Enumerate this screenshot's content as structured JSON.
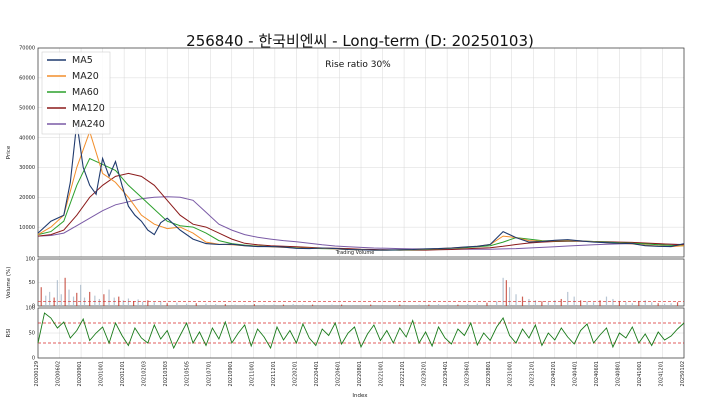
{
  "figure": {
    "title": "256840 - 한국비엔씨 - Long-term (D: 20250103)",
    "annotation": "Rise ratio 30%",
    "watermark": "Trading Volume"
  },
  "chart_data": [
    {
      "type": "line",
      "panel": "price",
      "ylabel": "Price",
      "ylim": [
        0,
        70000
      ],
      "yticks": [
        10000,
        20000,
        30000,
        40000,
        50000,
        60000,
        70000
      ],
      "grid": true,
      "legend_position": "top-left",
      "x_range": [
        0,
        1000
      ],
      "series": [
        {
          "name": "MA5",
          "color": "#1f3a6e",
          "x": [
            0,
            20,
            40,
            50,
            60,
            70,
            80,
            90,
            100,
            110,
            120,
            130,
            140,
            150,
            160,
            170,
            180,
            190,
            200,
            220,
            240,
            260,
            280,
            300,
            320,
            340,
            360,
            380,
            400,
            420,
            440,
            460,
            480,
            500,
            520,
            540,
            560,
            580,
            600,
            620,
            640,
            660,
            680,
            700,
            720,
            740,
            760,
            780,
            800,
            820,
            840,
            860,
            880,
            900,
            920,
            940,
            960,
            980,
            1000
          ],
          "y": [
            8000,
            12000,
            14000,
            25000,
            45000,
            30000,
            24000,
            21000,
            33000,
            27000,
            32000,
            24000,
            17000,
            14000,
            12000,
            9000,
            7500,
            11500,
            13000,
            9000,
            6000,
            4500,
            4200,
            4300,
            3800,
            3500,
            3500,
            3300,
            2900,
            2800,
            3000,
            2800,
            2500,
            2400,
            2300,
            2300,
            2400,
            2500,
            2700,
            2800,
            3000,
            3300,
            3600,
            4200,
            8500,
            6500,
            5000,
            5200,
            5600,
            5800,
            5400,
            5000,
            4800,
            4600,
            4500,
            3800,
            3600,
            3500,
            4500
          ]
        },
        {
          "name": "MA20",
          "color": "#f28e2b",
          "x": [
            0,
            20,
            40,
            60,
            80,
            100,
            120,
            140,
            160,
            180,
            200,
            220,
            240,
            260,
            280,
            300,
            320,
            340,
            360,
            380,
            400,
            420,
            440,
            460,
            480,
            500,
            520,
            540,
            560,
            580,
            600,
            620,
            640,
            660,
            680,
            700,
            720,
            740,
            760,
            780,
            800,
            820,
            840,
            860,
            880,
            900,
            920,
            940,
            960,
            980,
            1000
          ],
          "y": [
            7500,
            10000,
            14000,
            30000,
            42000,
            28000,
            25000,
            20000,
            14000,
            11000,
            9500,
            10000,
            8000,
            5000,
            4300,
            4100,
            3800,
            3600,
            3400,
            3200,
            3000,
            2900,
            2900,
            2700,
            2500,
            2400,
            2300,
            2300,
            2400,
            2500,
            2600,
            2800,
            3000,
            3300,
            3600,
            4200,
            7000,
            6500,
            5500,
            5300,
            5500,
            5600,
            5400,
            5100,
            4800,
            4600,
            4400,
            4000,
            3700,
            3500,
            3800
          ]
        },
        {
          "name": "MA60",
          "color": "#2ca02c",
          "x": [
            0,
            20,
            40,
            60,
            80,
            100,
            120,
            140,
            160,
            180,
            200,
            220,
            240,
            260,
            280,
            300,
            320,
            340,
            360,
            380,
            400,
            420,
            440,
            460,
            480,
            500,
            520,
            540,
            560,
            580,
            600,
            620,
            640,
            660,
            680,
            700,
            720,
            740,
            760,
            780,
            800,
            820,
            840,
            860,
            880,
            900,
            920,
            940,
            960,
            980,
            1000
          ],
          "y": [
            7500,
            8500,
            12000,
            24000,
            33000,
            31000,
            29000,
            24000,
            20000,
            16000,
            12000,
            10500,
            10000,
            8000,
            5500,
            4500,
            4000,
            3700,
            3500,
            3300,
            3100,
            2900,
            2800,
            2700,
            2500,
            2400,
            2300,
            2300,
            2300,
            2400,
            2500,
            2700,
            2900,
            3100,
            3400,
            3800,
            5000,
            6500,
            6000,
            5500,
            5400,
            5500,
            5400,
            5200,
            5000,
            4800,
            4600,
            4400,
            4100,
            3900,
            3800
          ]
        },
        {
          "name": "MA120",
          "color": "#8b1a1a",
          "x": [
            0,
            20,
            40,
            60,
            80,
            100,
            120,
            140,
            160,
            180,
            200,
            220,
            240,
            260,
            280,
            300,
            320,
            340,
            360,
            380,
            400,
            420,
            440,
            460,
            480,
            500,
            520,
            540,
            560,
            580,
            600,
            620,
            640,
            660,
            680,
            700,
            720,
            740,
            760,
            780,
            800,
            820,
            840,
            860,
            880,
            900,
            920,
            940,
            960,
            980,
            1000
          ],
          "y": [
            7000,
            7500,
            9000,
            14000,
            20000,
            24000,
            27000,
            28000,
            27000,
            24000,
            19000,
            14000,
            11000,
            10000,
            8000,
            6000,
            4600,
            4100,
            3800,
            3600,
            3400,
            3200,
            3000,
            2900,
            2800,
            2600,
            2500,
            2400,
            2300,
            2300,
            2300,
            2400,
            2500,
            2700,
            2900,
            3100,
            3600,
            4200,
            4700,
            5000,
            5200,
            5300,
            5300,
            5200,
            5100,
            5000,
            4900,
            4700,
            4500,
            4300,
            4100
          ]
        },
        {
          "name": "MA240",
          "color": "#7a5aa6",
          "x": [
            0,
            20,
            40,
            60,
            80,
            100,
            120,
            140,
            160,
            180,
            200,
            220,
            240,
            260,
            280,
            300,
            320,
            340,
            360,
            380,
            400,
            420,
            440,
            460,
            480,
            500,
            520,
            540,
            560,
            580,
            600,
            620,
            640,
            660,
            680,
            700,
            720,
            740,
            760,
            780,
            800,
            820,
            840,
            860,
            880,
            900,
            920,
            940,
            960,
            980,
            1000
          ],
          "y": [
            7000,
            7200,
            8000,
            10500,
            13000,
            15500,
            17500,
            18500,
            19500,
            20000,
            20200,
            20000,
            19000,
            15000,
            11000,
            9000,
            7500,
            6600,
            6000,
            5500,
            5100,
            4600,
            4100,
            3700,
            3400,
            3200,
            3000,
            2900,
            2800,
            2700,
            2700,
            2700,
            2600,
            2600,
            2600,
            2600,
            2700,
            2800,
            3000,
            3200,
            3400,
            3700,
            3900,
            4100,
            4300,
            4400,
            4500,
            4500,
            4400,
            4300,
            4200
          ]
        }
      ]
    },
    {
      "type": "bar",
      "panel": "volume",
      "ylabel": "Volume (%)",
      "ylim": [
        0,
        100
      ],
      "yticks": [
        0,
        50,
        100
      ],
      "reference_line": 10,
      "x": [
        5,
        12,
        18,
        25,
        30,
        36,
        42,
        48,
        55,
        60,
        66,
        72,
        80,
        88,
        95,
        102,
        110,
        118,
        125,
        132,
        140,
        148,
        155,
        162,
        170,
        180,
        190,
        200,
        215,
        230,
        245,
        260,
        275,
        290,
        305,
        320,
        335,
        350,
        365,
        380,
        395,
        410,
        425,
        440,
        455,
        470,
        485,
        500,
        515,
        530,
        545,
        560,
        575,
        590,
        605,
        620,
        635,
        650,
        665,
        680,
        695,
        710,
        720,
        725,
        730,
        740,
        750,
        760,
        770,
        780,
        790,
        800,
        810,
        820,
        830,
        840,
        850,
        860,
        870,
        880,
        890,
        900,
        910,
        920,
        930,
        940,
        950,
        960,
        970,
        980,
        990
      ],
      "values": [
        40,
        22,
        30,
        18,
        55,
        25,
        60,
        35,
        20,
        28,
        45,
        18,
        30,
        22,
        15,
        25,
        35,
        18,
        20,
        12,
        16,
        10,
        14,
        9,
        12,
        8,
        10,
        6,
        7,
        5,
        6,
        5,
        4,
        4,
        3,
        3,
        4,
        3,
        3,
        3,
        4,
        3,
        3,
        2,
        3,
        3,
        2,
        2,
        3,
        2,
        2,
        3,
        2,
        3,
        3,
        4,
        3,
        3,
        4,
        5,
        7,
        10,
        60,
        55,
        40,
        25,
        20,
        15,
        12,
        10,
        8,
        12,
        15,
        30,
        20,
        12,
        10,
        8,
        12,
        20,
        15,
        10,
        8,
        6,
        10,
        12,
        8,
        6,
        5,
        6,
        8
      ]
    },
    {
      "type": "line",
      "panel": "rsi",
      "ylabel": "RSI",
      "ylim": [
        0,
        100
      ],
      "yticks": [
        0,
        50,
        100
      ],
      "reference_lines": [
        70,
        30
      ],
      "x_label": "Index",
      "series": [
        {
          "name": "",
          "color": "#1a7a1a",
          "x": [
            0,
            10,
            20,
            30,
            40,
            50,
            60,
            70,
            80,
            90,
            100,
            110,
            120,
            130,
            140,
            150,
            160,
            170,
            180,
            190,
            200,
            210,
            220,
            230,
            240,
            250,
            260,
            270,
            280,
            290,
            300,
            310,
            320,
            330,
            340,
            350,
            360,
            370,
            380,
            390,
            400,
            410,
            420,
            430,
            440,
            450,
            460,
            470,
            480,
            490,
            500,
            510,
            520,
            530,
            540,
            550,
            560,
            570,
            580,
            590,
            600,
            610,
            620,
            630,
            640,
            650,
            660,
            670,
            680,
            690,
            700,
            710,
            720,
            730,
            740,
            750,
            760,
            770,
            780,
            790,
            800,
            810,
            820,
            830,
            840,
            850,
            860,
            870,
            880,
            890,
            900,
            910,
            920,
            930,
            940,
            950,
            960,
            970,
            980,
            990,
            1000
          ],
          "y": [
            30,
            90,
            80,
            60,
            72,
            40,
            55,
            78,
            35,
            50,
            62,
            30,
            70,
            45,
            25,
            60,
            40,
            30,
            66,
            38,
            55,
            20,
            45,
            70,
            30,
            52,
            25,
            60,
            38,
            72,
            30,
            50,
            66,
            24,
            58,
            42,
            20,
            62,
            36,
            55,
            30,
            68,
            40,
            25,
            58,
            45,
            70,
            28,
            50,
            62,
            22,
            48,
            66,
            35,
            55,
            30,
            60,
            42,
            75,
            30,
            52,
            24,
            62,
            40,
            28,
            58,
            45,
            70,
            26,
            50,
            35,
            62,
            80,
            45,
            30,
            58,
            40,
            66,
            25,
            50,
            36,
            60,
            42,
            28,
            55,
            68,
            30,
            46,
            60,
            22,
            50,
            40,
            62,
            30,
            48,
            25,
            52,
            36,
            44,
            58,
            70
          ]
        }
      ]
    }
  ],
  "x_tick_labels": [
    "20200129",
    "20200602",
    "20200901",
    "20201001",
    "20201201",
    "20210203",
    "20210303",
    "20210505",
    "20210701",
    "20210901",
    "20211001",
    "20211201",
    "20220201",
    "20220401",
    "20220601",
    "20220801",
    "20221001",
    "20221201",
    "20230201",
    "20230401",
    "20230601",
    "20230801",
    "20231001",
    "20231201",
    "20240201",
    "20240401",
    "20240601",
    "20240801",
    "20241001",
    "20241201",
    "20250102"
  ]
}
